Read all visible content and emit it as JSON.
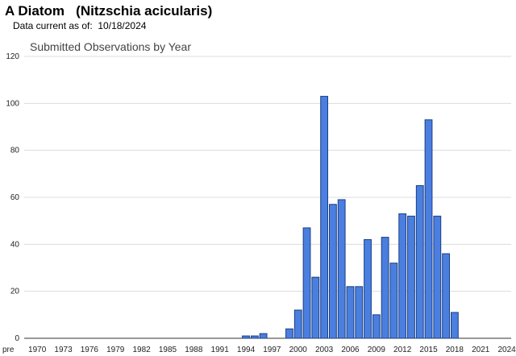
{
  "header": {
    "title": "A Diatom   (Nitzschia acicularis)",
    "subtitle": "Data current as of:  10/18/2024"
  },
  "chart_data": {
    "type": "bar",
    "title": "Submitted Observations by Year",
    "xlabel": "",
    "ylabel": "",
    "ylim": [
      0,
      120
    ],
    "yticks": [
      0,
      20,
      40,
      60,
      80,
      100,
      120
    ],
    "grid": true,
    "legend": "none",
    "bar_color": "#4a7fe0",
    "bar_edge_color": "#1a3e82",
    "categories": [
      "pre",
      "1970",
      "1971",
      "1972",
      "1973",
      "1974",
      "1975",
      "1976",
      "1977",
      "1978",
      "1979",
      "1980",
      "1981",
      "1982",
      "1983",
      "1984",
      "1985",
      "1986",
      "1987",
      "1988",
      "1989",
      "1990",
      "1991",
      "1992",
      "1993",
      "1994",
      "1995",
      "1996",
      "1997",
      "1998",
      "1999",
      "2000",
      "2001",
      "2002",
      "2003",
      "2004",
      "2005",
      "2006",
      "2007",
      "2008",
      "2009",
      "2010",
      "2011",
      "2012",
      "2013",
      "2014",
      "2015",
      "2016",
      "2017",
      "2018",
      "2019",
      "2020",
      "2021",
      "2022",
      "2023",
      "2024"
    ],
    "values": [
      0,
      0,
      0,
      0,
      0,
      0,
      0,
      0,
      0,
      0,
      0,
      0,
      0,
      0,
      0,
      0,
      0,
      0,
      0,
      0,
      0,
      0,
      0,
      0,
      0,
      1,
      1,
      2,
      0,
      0,
      4,
      12,
      47,
      26,
      103,
      57,
      59,
      22,
      22,
      42,
      10,
      43,
      32,
      53,
      52,
      65,
      93,
      52,
      36,
      11,
      0,
      0,
      0,
      0,
      0,
      0
    ],
    "xtick_labels": [
      "pre",
      "1970",
      "1973",
      "1976",
      "1979",
      "1982",
      "1985",
      "1988",
      "1991",
      "1994",
      "1997",
      "2000",
      "2003",
      "2006",
      "2009",
      "2012",
      "2015",
      "2018",
      "2021",
      "2024"
    ]
  }
}
